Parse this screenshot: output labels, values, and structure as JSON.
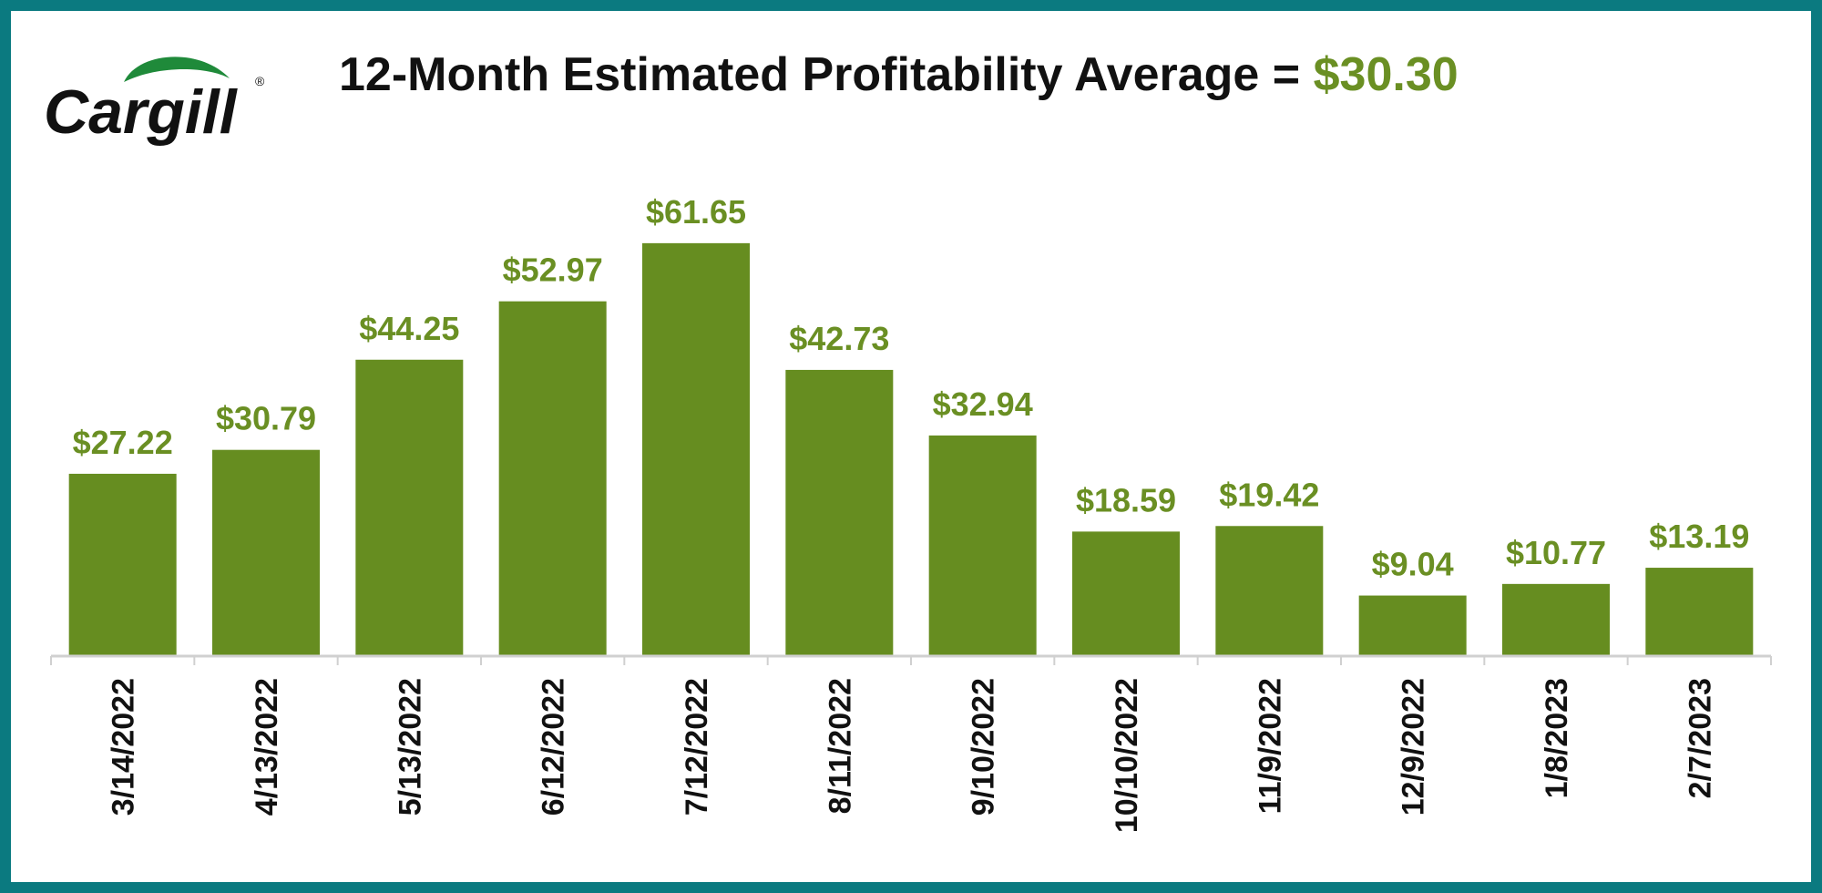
{
  "colors": {
    "border": "#0b7a80",
    "bar": "#668d20",
    "label": "#6a8f23",
    "title": "#111111",
    "axis": "#d0d0d0"
  },
  "logo": {
    "text": "Cargill",
    "mark": "®"
  },
  "header": {
    "title_prefix": "12-Month Estimated Profitability Average = ",
    "average_value": "$30.30"
  },
  "chart_data": {
    "type": "bar",
    "title": "12-Month Estimated Profitability Average = $30.30",
    "xlabel": "",
    "ylabel": "",
    "ylim": [
      0,
      65
    ],
    "grid": false,
    "legend": "none",
    "categories": [
      "3/14/2022",
      "4/13/2022",
      "5/13/2022",
      "6/12/2022",
      "7/12/2022",
      "8/11/2022",
      "9/10/2022",
      "10/10/2022",
      "11/9/2022",
      "12/9/2022",
      "1/8/2023",
      "2/7/2023"
    ],
    "values": [
      27.22,
      30.79,
      44.25,
      52.97,
      61.65,
      42.73,
      32.94,
      18.59,
      19.42,
      9.04,
      10.77,
      13.19
    ],
    "data_labels": [
      "$27.22",
      "$30.79",
      "$44.25",
      "$52.97",
      "$61.65",
      "$42.73",
      "$32.94",
      "$18.59",
      "$19.42",
      "$9.04",
      "$10.77",
      "$13.19"
    ]
  }
}
